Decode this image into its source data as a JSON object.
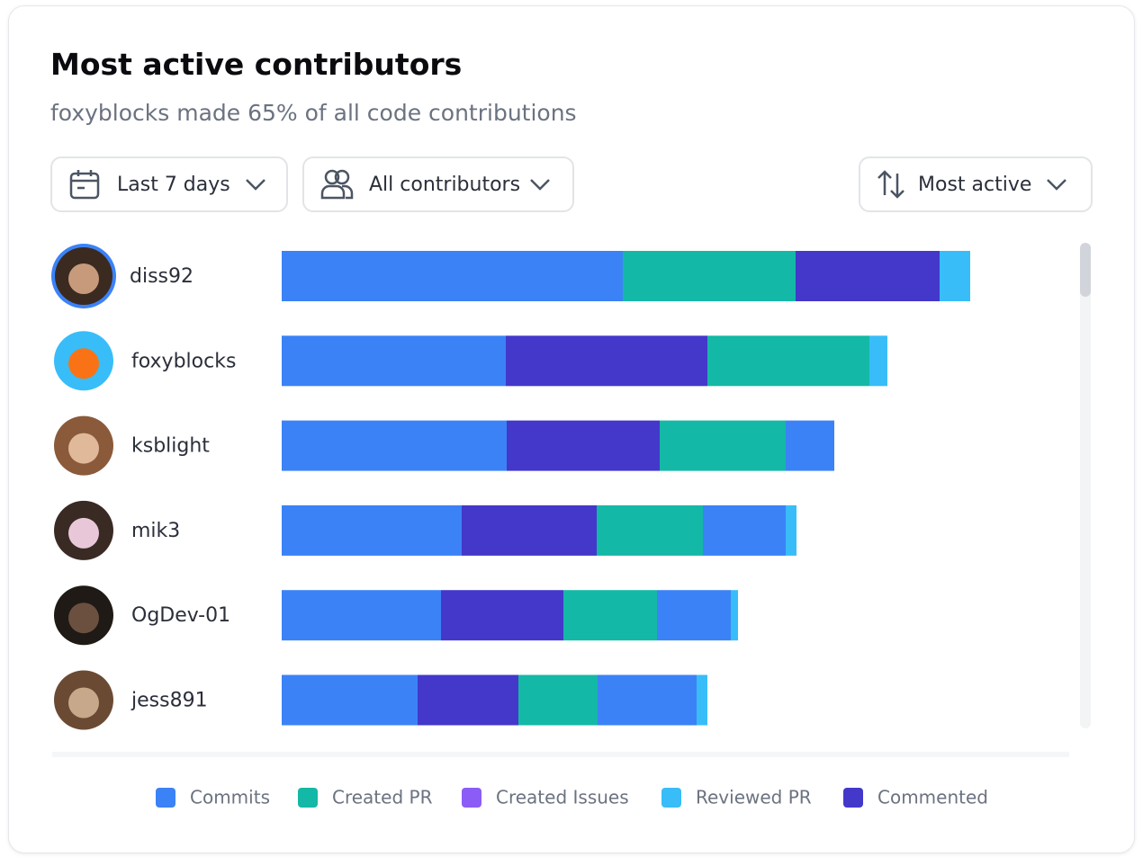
{
  "chart_data": {
    "type": "bar",
    "orientation": "horizontal",
    "title": "Most active contributors",
    "subtitle": "foxyblocks made 65% of all code contributions",
    "controls": [
      "Last 7 days",
      "All contributors",
      "Most active"
    ],
    "categories": [
      "diss92",
      "foxyblocks",
      "ksblight",
      "mik3",
      "OgDev-01",
      "jess891"
    ],
    "series": [
      {
        "name": "Commits",
        "color": "#3b82f6"
      },
      {
        "name": "Created PR",
        "color": "#14b8a6"
      },
      {
        "name": "Created Issues",
        "color": "#8b5cf6"
      },
      {
        "name": "Reviewed PR",
        "color": "#38bdf8"
      },
      {
        "name": "Commented",
        "color": "#4338ca"
      }
    ],
    "bars": [
      {
        "segments": [
          {
            "series": "Commits",
            "value": 37.9
          },
          {
            "series": "Created PR",
            "value": 19.2
          },
          {
            "series": "Commented",
            "value": 16.0
          },
          {
            "series": "Reviewed PR",
            "value": 3.4
          }
        ]
      },
      {
        "segments": [
          {
            "series": "Commits",
            "value": 24.9
          },
          {
            "series": "Commented",
            "value": 22.4
          },
          {
            "series": "Created PR",
            "value": 18.0
          },
          {
            "series": "Reviewed PR",
            "value": 2.0
          }
        ]
      },
      {
        "segments": [
          {
            "series": "Commits",
            "value": 25.0
          },
          {
            "series": "Commented",
            "value": 17.0
          },
          {
            "series": "Created PR",
            "value": 14.0
          },
          {
            "series": "Commits",
            "value": 5.4
          }
        ]
      },
      {
        "segments": [
          {
            "series": "Commits",
            "value": 20.0
          },
          {
            "series": "Commented",
            "value": 15.0
          },
          {
            "series": "Created PR",
            "value": 11.8
          },
          {
            "series": "Commits",
            "value": 9.2
          },
          {
            "series": "Reviewed PR",
            "value": 1.2
          }
        ]
      },
      {
        "segments": [
          {
            "series": "Commits",
            "value": 17.7
          },
          {
            "series": "Commented",
            "value": 13.6
          },
          {
            "series": "Created PR",
            "value": 10.4
          },
          {
            "series": "Commits",
            "value": 8.2
          },
          {
            "series": "Reviewed PR",
            "value": 0.8
          }
        ]
      },
      {
        "segments": [
          {
            "series": "Commits",
            "value": 15.1
          },
          {
            "series": "Commented",
            "value": 11.2
          },
          {
            "series": "Created PR",
            "value": 8.8
          },
          {
            "series": "Commits",
            "value": 11.0
          },
          {
            "series": "Reviewed PR",
            "value": 1.2
          }
        ]
      }
    ]
  }
}
